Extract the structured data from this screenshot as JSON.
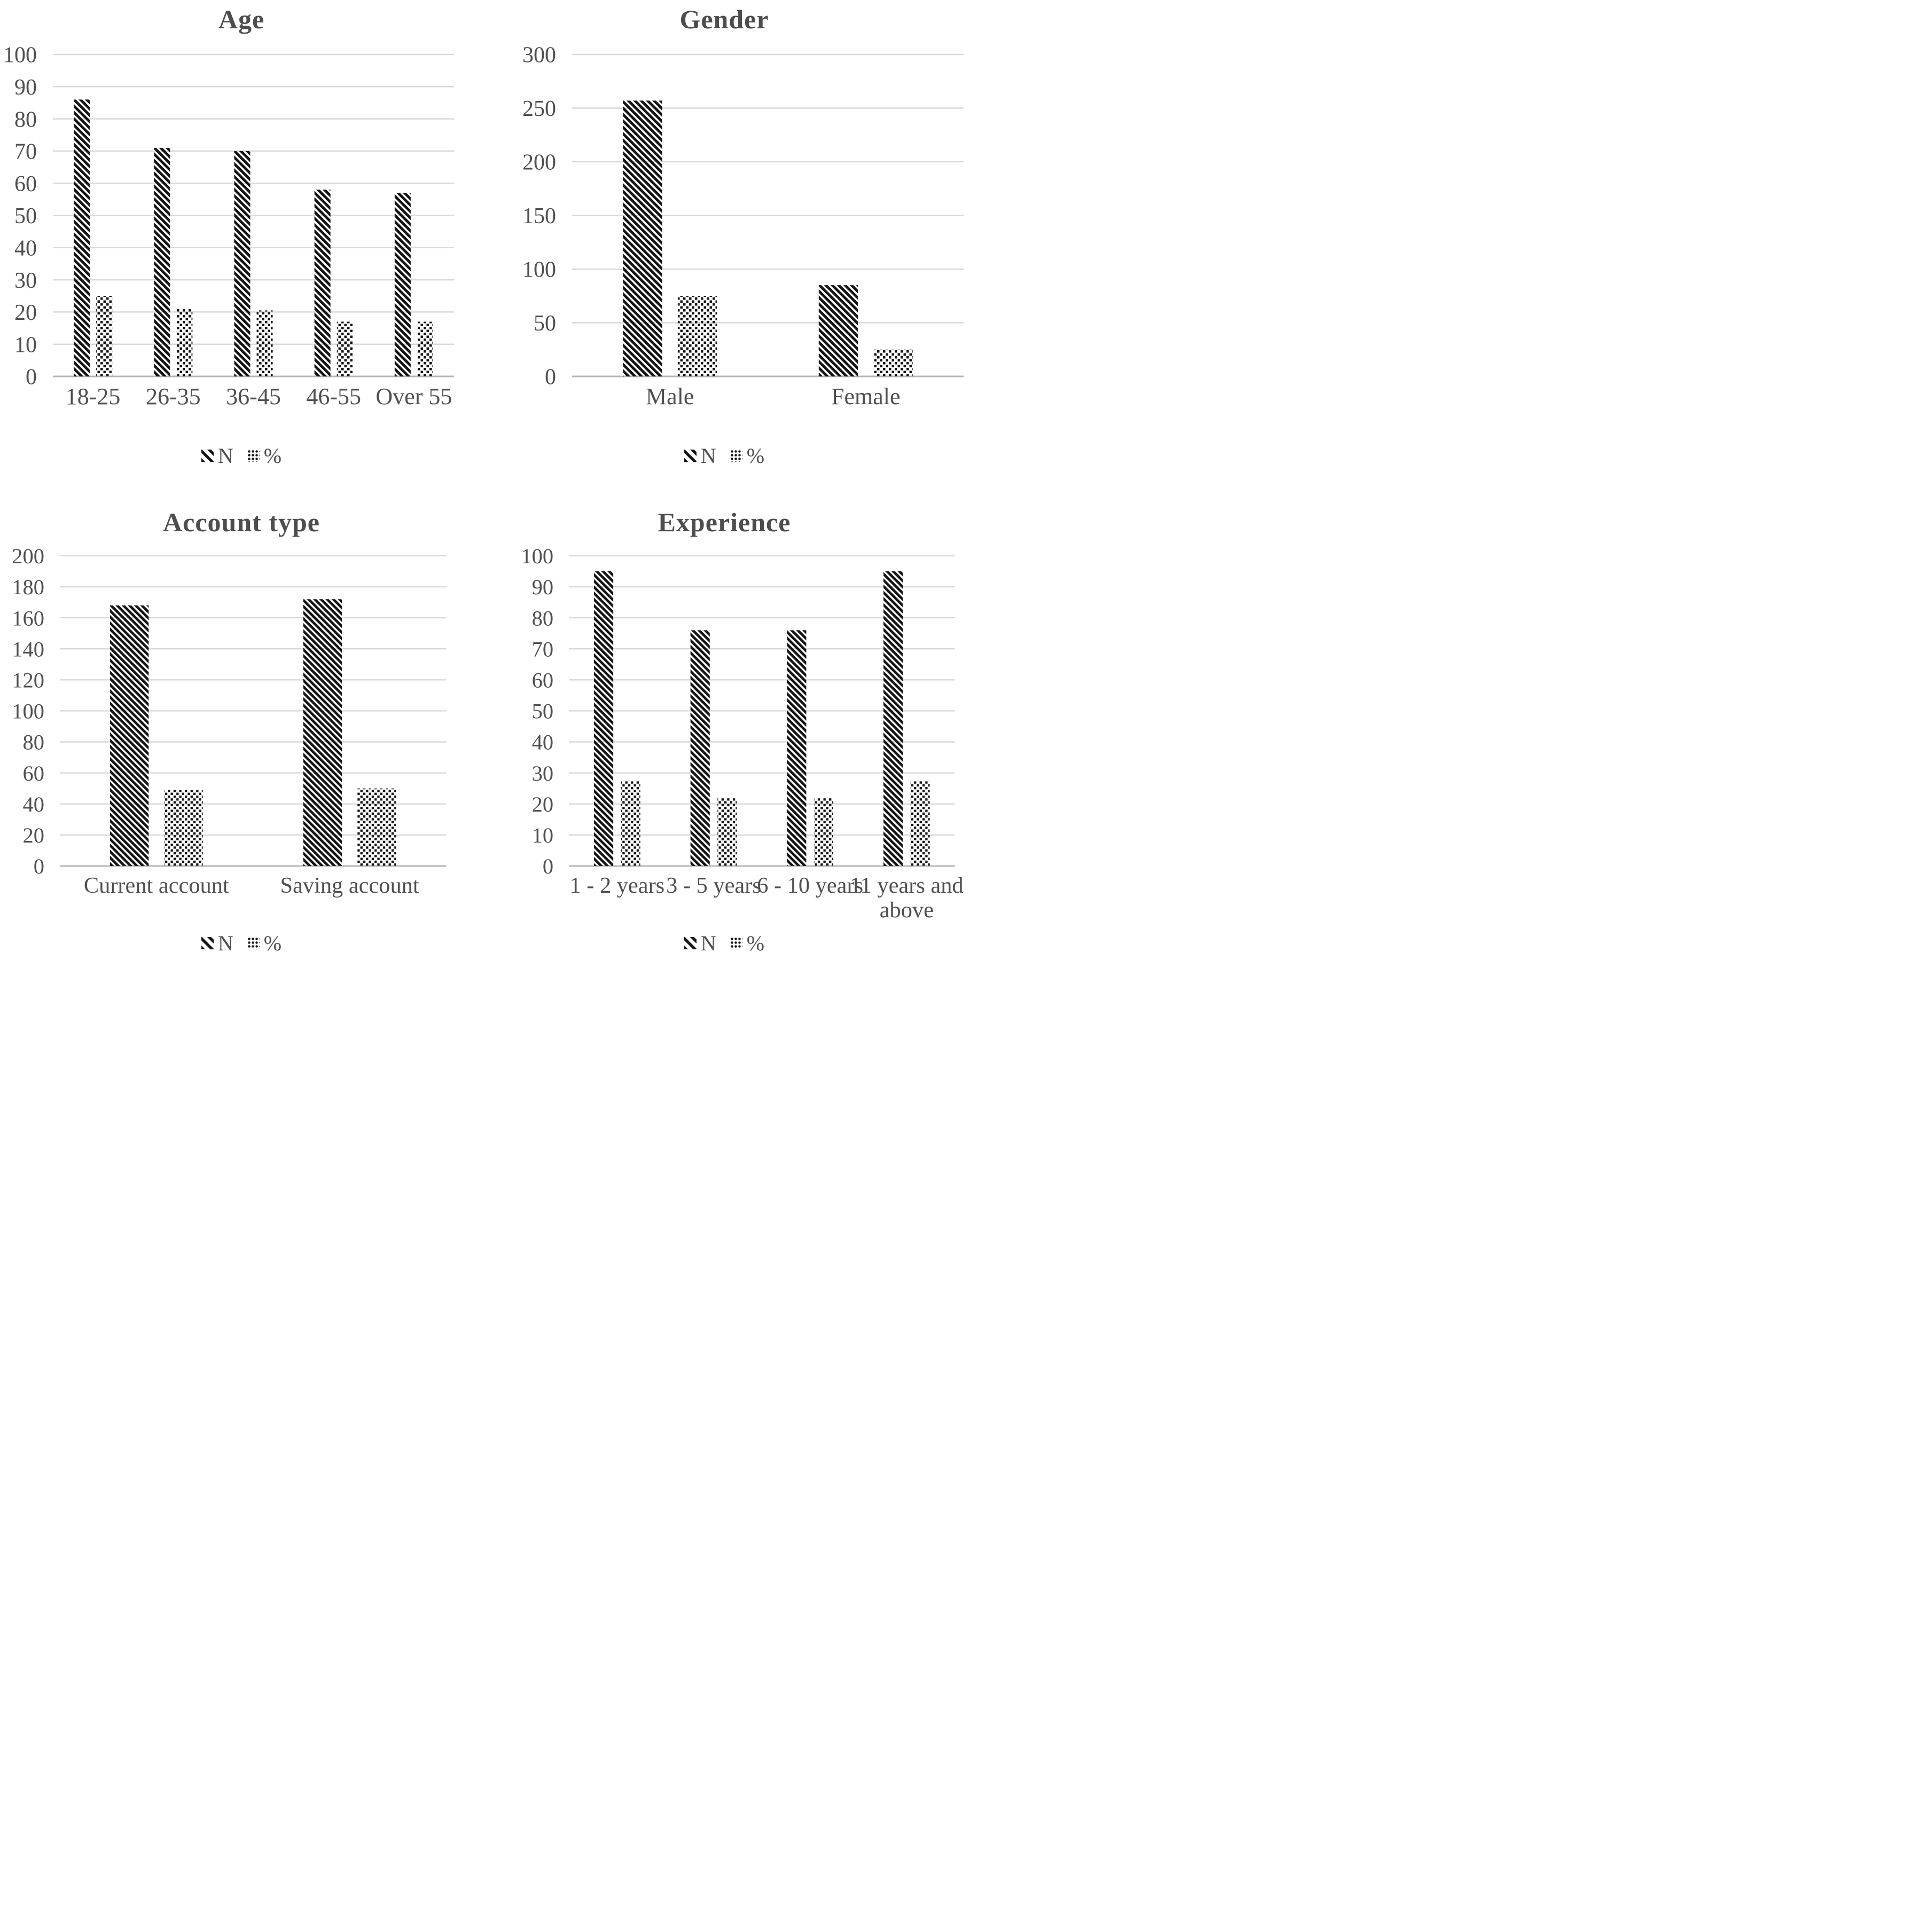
{
  "figure": {
    "background": "#ffffff",
    "description": "2x2 panel of demographic bar charts"
  },
  "colors": {
    "bar": "#141414",
    "text": "#4f4f4f",
    "title": "#4d4d4d",
    "gridline": "#d9d9d9",
    "axis_line": "#b5b5b5"
  },
  "chart_data": [
    {
      "type": "bar",
      "title": "Age",
      "categories": [
        "18-25",
        "26-35",
        "36-45",
        "46-55",
        "Over 55"
      ],
      "series": [
        {
          "name": "N",
          "fill_pattern": "diagonal-hatch",
          "values": [
            86,
            71,
            70,
            58,
            57
          ]
        },
        {
          "name": "%",
          "fill_pattern": "dots",
          "values": [
            25,
            21,
            20.5,
            17,
            17
          ]
        }
      ],
      "xlabel": "",
      "ylabel": "",
      "ylim": [
        0,
        100
      ],
      "yticks": [
        0,
        10,
        20,
        30,
        40,
        50,
        60,
        70,
        80,
        90,
        100
      ],
      "grid": true,
      "legend_position": "bottom"
    },
    {
      "type": "bar",
      "title": "Gender",
      "categories": [
        "Male",
        "Female"
      ],
      "series": [
        {
          "name": "N",
          "fill_pattern": "diagonal-hatch",
          "values": [
            257,
            85
          ]
        },
        {
          "name": "%",
          "fill_pattern": "dots",
          "values": [
            75,
            25
          ]
        }
      ],
      "xlabel": "",
      "ylabel": "",
      "ylim": [
        0,
        300
      ],
      "yticks": [
        0,
        50,
        100,
        150,
        200,
        250,
        300
      ],
      "grid": true,
      "legend_position": "bottom"
    },
    {
      "type": "bar",
      "title": "Account type",
      "categories": [
        "Current account",
        "Saving account"
      ],
      "series": [
        {
          "name": "N",
          "fill_pattern": "diagonal-hatch",
          "values": [
            168,
            172
          ]
        },
        {
          "name": "%",
          "fill_pattern": "dots",
          "values": [
            49,
            50
          ]
        }
      ],
      "xlabel": "",
      "ylabel": "",
      "ylim": [
        0,
        200
      ],
      "yticks": [
        0,
        20,
        40,
        60,
        80,
        100,
        120,
        140,
        160,
        180,
        200
      ],
      "grid": true,
      "legend_position": "bottom"
    },
    {
      "type": "bar",
      "title": "Experience",
      "categories": [
        "1 - 2 years",
        "3 - 5 years",
        "6 - 10 years",
        "11 years and above"
      ],
      "series": [
        {
          "name": "N",
          "fill_pattern": "diagonal-hatch",
          "values": [
            95,
            76,
            76,
            95
          ]
        },
        {
          "name": "%",
          "fill_pattern": "dots",
          "values": [
            27.5,
            22,
            22,
            27.5
          ]
        }
      ],
      "xlabel": "",
      "ylabel": "",
      "ylim": [
        0,
        100
      ],
      "yticks": [
        0,
        10,
        20,
        30,
        40,
        50,
        60,
        70,
        80,
        90,
        100
      ],
      "grid": true,
      "legend_position": "bottom"
    }
  ]
}
